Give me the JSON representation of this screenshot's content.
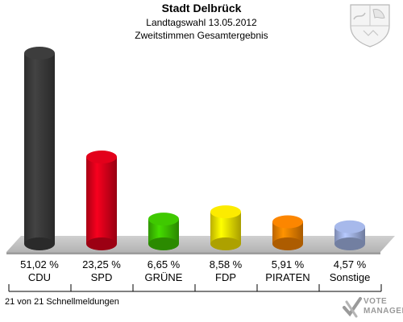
{
  "header": {
    "title": "Stadt Delbrück",
    "subtitle1": "Landtagswahl 13.05.2012",
    "subtitle2": "Zweitstimmen Gesamtergebnis"
  },
  "footer": {
    "text": "21 von 21 Schnellmeldungen"
  },
  "logo": {
    "line1": "VOTE",
    "line2": "MANAGER"
  },
  "crest_icon": "nrw-coat-of-arms-icon",
  "chart_data": {
    "type": "bar",
    "title": "Stadt Delbrück",
    "subtitle": "Landtagswahl 13.05.2012 Zweitstimmen Gesamtergebnis",
    "categories": [
      "CDU",
      "SPD",
      "GRÜNE",
      "FDP",
      "PIRATEN",
      "Sonstige"
    ],
    "values": [
      51.02,
      23.25,
      6.65,
      8.58,
      5.91,
      4.57
    ],
    "value_labels": [
      "51,02 %",
      "23,25 %",
      "6,65 %",
      "8,58 %",
      "5,91 %",
      "4,57 %"
    ],
    "colors": [
      "#3a3a3a",
      "#d8001a",
      "#3cbf00",
      "#f0e000",
      "#f08000",
      "#9fb0e0"
    ],
    "xlabel": "",
    "ylabel": "",
    "ylim": [
      0,
      51.02
    ],
    "grid": false,
    "legend": "none"
  }
}
